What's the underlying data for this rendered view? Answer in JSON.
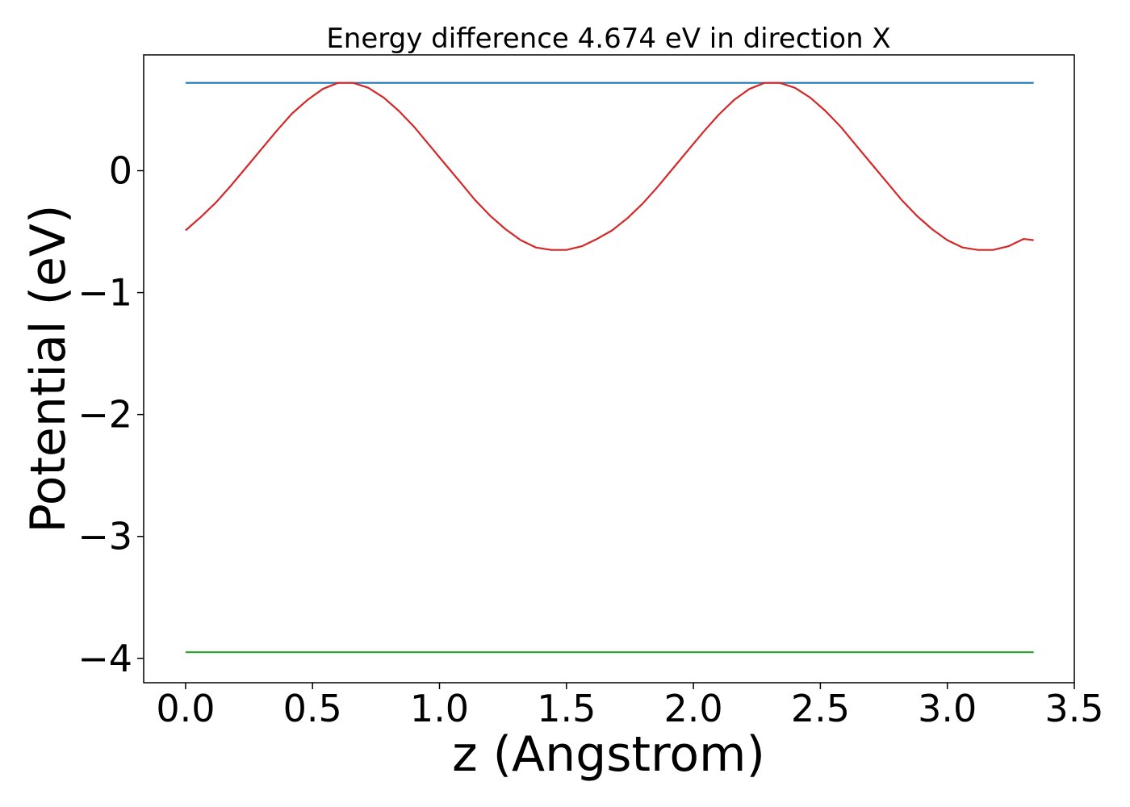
{
  "chart_data": {
    "type": "line",
    "title": "Energy difference 4.674 eV in direction X",
    "xlabel": "z (Angstrom)",
    "ylabel": "Potential (eV)",
    "xlim": [
      -0.165,
      3.5
    ],
    "ylim": [
      -4.2,
      0.95
    ],
    "xticks": [
      0.0,
      0.5,
      1.0,
      1.5,
      2.0,
      2.5,
      3.0,
      3.5
    ],
    "xtick_labels": [
      "0.0",
      "0.5",
      "1.0",
      "1.5",
      "2.0",
      "2.5",
      "3.0",
      "3.5"
    ],
    "yticks": [
      0,
      -1,
      -2,
      -3,
      -4
    ],
    "ytick_labels": [
      "0",
      "−1",
      "−2",
      "−3",
      "−4"
    ],
    "grid": false,
    "legend": "none",
    "series": [
      {
        "color": "#d62728",
        "x": [
          0.0,
          0.06,
          0.12,
          0.18,
          0.24,
          0.3,
          0.36,
          0.42,
          0.48,
          0.54,
          0.6,
          0.66,
          0.72,
          0.78,
          0.84,
          0.9,
          0.96,
          1.02,
          1.08,
          1.14,
          1.2,
          1.26,
          1.32,
          1.38,
          1.44,
          1.5,
          1.56,
          1.62,
          1.68,
          1.74,
          1.8,
          1.86,
          1.92,
          1.98,
          2.04,
          2.1,
          2.16,
          2.22,
          2.28,
          2.34,
          2.4,
          2.46,
          2.52,
          2.58,
          2.64,
          2.7,
          2.76,
          2.82,
          2.88,
          2.94,
          3.0,
          3.06,
          3.12,
          3.18,
          3.24,
          3.3,
          3.34
        ],
        "y": [
          -0.49,
          -0.38,
          -0.26,
          -0.12,
          0.03,
          0.18,
          0.33,
          0.47,
          0.58,
          0.67,
          0.72,
          0.72,
          0.68,
          0.6,
          0.49,
          0.36,
          0.21,
          0.06,
          -0.09,
          -0.24,
          -0.37,
          -0.48,
          -0.57,
          -0.63,
          -0.65,
          -0.65,
          -0.62,
          -0.56,
          -0.49,
          -0.39,
          -0.27,
          -0.13,
          0.02,
          0.17,
          0.32,
          0.46,
          0.58,
          0.67,
          0.72,
          0.72,
          0.68,
          0.6,
          0.49,
          0.36,
          0.21,
          0.06,
          -0.09,
          -0.24,
          -0.37,
          -0.48,
          -0.57,
          -0.63,
          -0.65,
          -0.65,
          -0.62,
          -0.56,
          -0.57
        ]
      },
      {
        "color": "#1f77b4",
        "x": [
          0.0,
          3.34
        ],
        "y": [
          0.72,
          0.72
        ]
      },
      {
        "color": "#2ca02c",
        "x": [
          0.0,
          3.34
        ],
        "y": [
          -3.95,
          -3.95
        ]
      }
    ]
  }
}
